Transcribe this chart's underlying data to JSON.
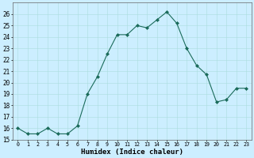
{
  "x": [
    0,
    1,
    2,
    3,
    4,
    5,
    6,
    7,
    8,
    9,
    10,
    11,
    12,
    13,
    14,
    15,
    16,
    17,
    18,
    19,
    20,
    21,
    22,
    23
  ],
  "y": [
    16.0,
    15.5,
    15.5,
    16.0,
    15.5,
    15.5,
    16.2,
    19.0,
    20.5,
    22.5,
    24.2,
    24.2,
    25.0,
    24.8,
    25.5,
    26.2,
    25.2,
    23.0,
    21.5,
    20.7,
    18.3,
    18.5,
    19.5,
    19.5
  ],
  "line_color": "#1a6b5a",
  "marker": "D",
  "marker_size": 2.0,
  "bg_color": "#cceeff",
  "grid_color": "#aadddd",
  "xlabel": "Humidex (Indice chaleur)",
  "xlim": [
    -0.5,
    23.5
  ],
  "ylim": [
    15,
    27
  ],
  "yticks": [
    15,
    16,
    17,
    18,
    19,
    20,
    21,
    22,
    23,
    24,
    25,
    26
  ],
  "xticks": [
    0,
    1,
    2,
    3,
    4,
    5,
    6,
    7,
    8,
    9,
    10,
    11,
    12,
    13,
    14,
    15,
    16,
    17,
    18,
    19,
    20,
    21,
    22,
    23
  ],
  "xlabel_fontsize": 6.5,
  "xtick_fontsize": 4.8,
  "ytick_fontsize": 5.5,
  "linewidth": 0.8
}
